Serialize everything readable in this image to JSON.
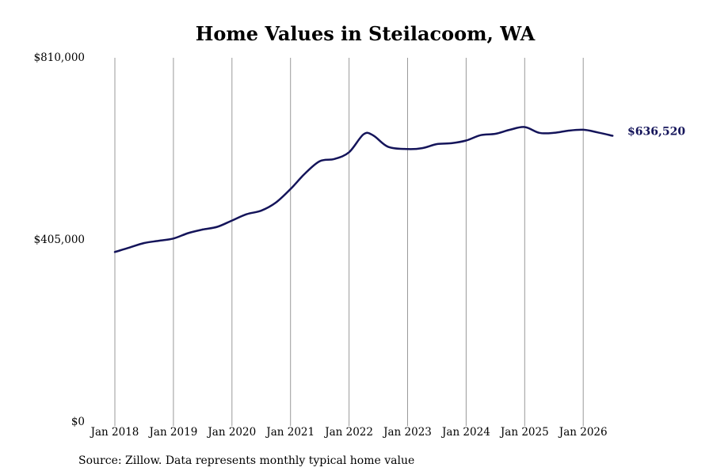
{
  "chart_data": {
    "type": "line",
    "title": "Home Values in Steilacoom, WA",
    "xlabel": "",
    "ylabel": "",
    "ylim": [
      0,
      810000
    ],
    "y_ticks": [
      {
        "value": 0,
        "label": "$0"
      },
      {
        "value": 405000,
        "label": "$405,000"
      },
      {
        "value": 810000,
        "label": "$810,000"
      }
    ],
    "x_ticks": [
      {
        "value": "2018-01",
        "label": "Jan 2018"
      },
      {
        "value": "2019-01",
        "label": "Jan 2019"
      },
      {
        "value": "2020-01",
        "label": "Jan 2020"
      },
      {
        "value": "2021-01",
        "label": "Jan 2021"
      },
      {
        "value": "2022-01",
        "label": "Jan 2022"
      },
      {
        "value": "2023-01",
        "label": "Jan 2023"
      },
      {
        "value": "2024-01",
        "label": "Jan 2024"
      },
      {
        "value": "2025-01",
        "label": "Jan 2025"
      },
      {
        "value": "2026-01",
        "label": "Jan 2026"
      }
    ],
    "grid": "vertical",
    "line_color": "#14145a",
    "series": [
      {
        "x": [
          "2018-01",
          "2018-04",
          "2018-07",
          "2018-10",
          "2019-01",
          "2019-04",
          "2019-07",
          "2019-10",
          "2020-01",
          "2020-04",
          "2020-07",
          "2020-10",
          "2021-01",
          "2021-04",
          "2021-07",
          "2021-10",
          "2022-01",
          "2022-04",
          "2022-06",
          "2022-09",
          "2023-01",
          "2023-04",
          "2023-07",
          "2023-10",
          "2024-01",
          "2024-04",
          "2024-07",
          "2024-10",
          "2025-01",
          "2025-04",
          "2025-07",
          "2025-10",
          "2026-01",
          "2026-04",
          "2026-07"
        ],
        "values": [
          378000,
          388000,
          398000,
          403000,
          408000,
          420000,
          428000,
          434000,
          448000,
          462000,
          470000,
          488000,
          518000,
          553000,
          580000,
          585000,
          600000,
          640000,
          637000,
          612000,
          607000,
          609000,
          618000,
          620000,
          626000,
          638000,
          641000,
          650000,
          656000,
          643000,
          643000,
          648000,
          650000,
          644000,
          636520
        ]
      }
    ],
    "last_value_label": "$636,520"
  },
  "source": "Source: Zillow. Data represents monthly typical home value"
}
